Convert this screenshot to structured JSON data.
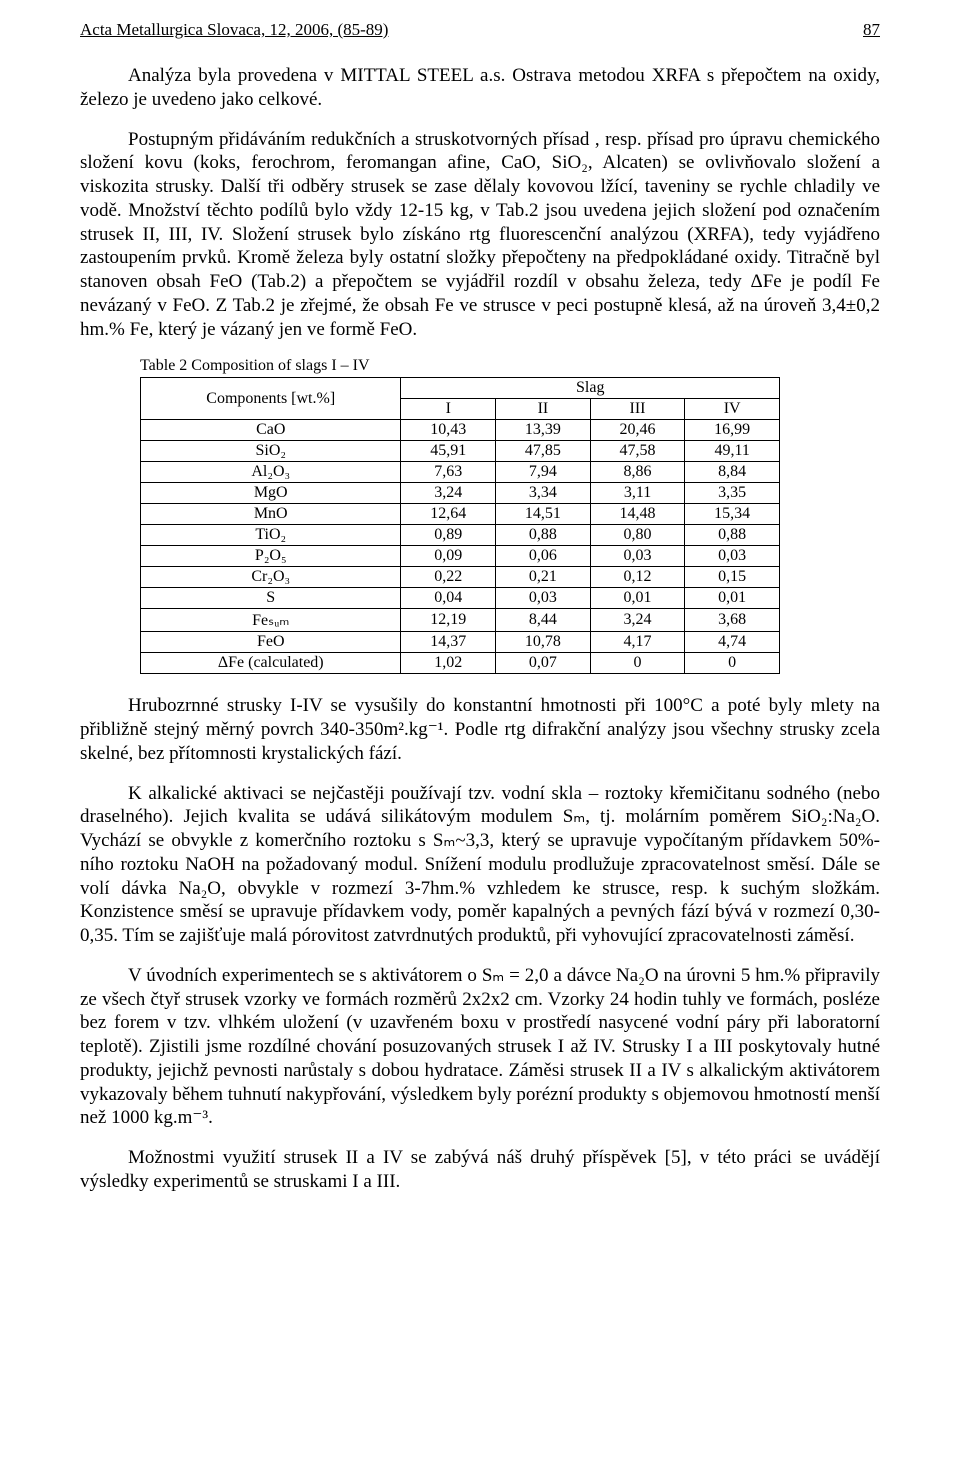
{
  "header": {
    "journal": "Acta Metallurgica Slovaca, 12, 2006, (85-89)",
    "page_no": "87"
  },
  "para1": "Analýza byla provedena v MITTAL STEEL a.s. Ostrava metodou XRFA s přepočtem na oxidy, železo je uvedeno jako celkové.",
  "para2": "Postupným přidáváním redukčních a struskotvorných přísad , resp. přísad pro úpravu chemického složení kovu (koks, ferochrom, feromangan afine, CaO, SiO₂, Alcaten) se ovlivňovalo složení a viskozita strusky. Další tři odběry strusek se zase dělaly kovovou lžící, taveniny se rychle chladily ve vodě. Množství těchto podílů bylo vždy 12-15 kg, v Tab.2 jsou uvedena jejich složení pod označením strusek II, III, IV. Složení strusek bylo získáno rtg fluorescenční analýzou (XRFA), tedy vyjádřeno zastoupením prvků. Kromě železa byly ostatní složky přepočteny na předpokládané oxidy. Titračně byl stanoven obsah FeO (Tab.2) a přepočtem se vyjádřil rozdíl v obsahu železa, tedy ΔFe je podíl Fe nevázaný v FeO. Z Tab.2 je zřejmé, že obsah Fe ve strusce v peci postupně klesá, až na úroveň 3,4±0,2 hm.% Fe, který je vázaný jen ve formě FeO.",
  "table": {
    "caption": "Table 2  Composition of slags  I – IV",
    "row_header_label": "Components [wt.%]",
    "super_header": "Slag",
    "cols": [
      "I",
      "II",
      "III",
      "IV"
    ],
    "rows_main": [
      {
        "label": "CaO",
        "vals": [
          "10,43",
          "13,39",
          "20,46",
          "16,99"
        ]
      },
      {
        "label": "SiO₂",
        "vals": [
          "45,91",
          "47,85",
          "47,58",
          "49,11"
        ]
      },
      {
        "label": "Al₂O₃",
        "vals": [
          "7,63",
          "7,94",
          "8,86",
          "8,84"
        ]
      },
      {
        "label": "MgO",
        "vals": [
          "3,24",
          "3,34",
          "3,11",
          "3,35"
        ]
      },
      {
        "label": "MnO",
        "vals": [
          "12,64",
          "14,51",
          "14,48",
          "15,34"
        ]
      },
      {
        "label": "TiO₂",
        "vals": [
          "0,89",
          "0,88",
          "0,80",
          "0,88"
        ]
      },
      {
        "label": "P₂O₅",
        "vals": [
          "0,09",
          "0,06",
          "0,03",
          "0,03"
        ]
      },
      {
        "label": "Cr₂O₃",
        "vals": [
          "0,22",
          "0,21",
          "0,12",
          "0,15"
        ]
      },
      {
        "label": "S",
        "vals": [
          "0,04",
          "0,03",
          "0,01",
          "0,01"
        ]
      }
    ],
    "rows_fe": [
      {
        "label": "Feₛᵤₘ",
        "vals": [
          "12,19",
          "8,44",
          "3,24",
          "3,68"
        ]
      },
      {
        "label": "FeO",
        "vals": [
          "14,37",
          "10,78",
          "4,17",
          "4,74"
        ]
      },
      {
        "label": "ΔFe (calculated)",
        "vals": [
          "1,02",
          "0,07",
          "0",
          "0"
        ]
      }
    ]
  },
  "para3": "Hrubozrnné strusky I-IV se vysušily do konstantní hmotnosti při 100°C a poté byly mlety na přibližně stejný měrný povrch 340-350m².kg⁻¹. Podle rtg difrakční analýzy jsou všechny strusky zcela skelné, bez přítomnosti krystalických fází.",
  "para4": "K alkalické aktivaci se nejčastěji používají tzv. vodní skla – roztoky křemičitanu sodného (nebo draselného). Jejich kvalita se udává silikátovým modulem Sₘ, tj. molárním poměrem SiO₂:Na₂O. Vychází se obvykle z komerčního roztoku s Sₘ~3,3, který se upravuje vypočítaným přídavkem 50%-ního roztoku NaOH na požadovaný modul. Snížení modulu prodlužuje zpracovatelnost směsí. Dále se volí dávka Na₂O, obvykle v rozmezí 3-7hm.% vzhledem ke strusce, resp. k suchým složkám. Konzistence směsí se upravuje přídavkem vody, poměr kapalných a pevných fází bývá v rozmezí 0,30-0,35. Tím se zajišťuje malá pórovitost zatvrdnutých produktů, při vyhovující zpracovatelnosti záměsí.",
  "para5": "V úvodních experimentech se s aktivátorem o Sₘ = 2,0 a dávce Na₂O na úrovni 5 hm.% připravily ze všech čtyř strusek vzorky ve formách rozměrů 2x2x2 cm. Vzorky 24 hodin tuhly ve formách, posléze bez forem v tzv. vlhkém uložení (v uzavřeném boxu v prostředí nasycené vodní páry při laboratorní teplotě). Zjistili jsme rozdílné chování posuzovaných strusek I až IV. Strusky I a III poskytovaly hutné produkty, jejichž pevnosti narůstaly s dobou hydratace. Záměsi strusek II a IV s alkalickým aktivátorem vykazovaly během tuhnutí nakypřování, výsledkem byly porézní produkty s objemovou hmotností menší než 1000 kg.m⁻³.",
  "para6": "Možnostmi využití strusek II a IV se zabývá náš druhý příspěvek [5], v této práci se uvádějí výsledky experimentů se struskami I a III."
}
